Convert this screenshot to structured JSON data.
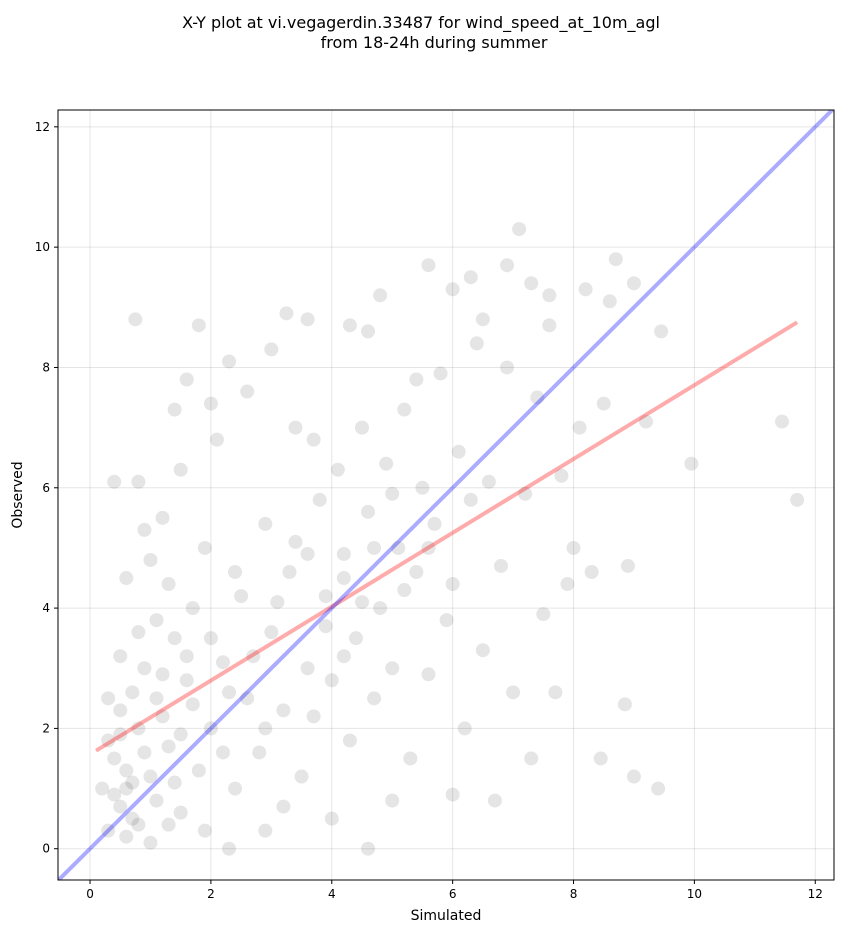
{
  "chart_data": {
    "type": "scatter",
    "title": [
      "X-Y plot at vi.vegagerdin.33487 for wind_speed_at_10m_agl",
      "from 18-24h during summer"
    ],
    "xlabel": "Simulated",
    "ylabel": "Observed",
    "xlim": [
      -0.53,
      12.31
    ],
    "ylim": [
      -0.52,
      12.28
    ],
    "xticks": [
      0,
      2,
      4,
      6,
      8,
      10,
      12
    ],
    "yticks": [
      0,
      2,
      4,
      6,
      8,
      10,
      12
    ],
    "grid": true,
    "color": "#000000",
    "x": [
      11.45,
      11.7,
      9.95,
      9.45,
      9.4,
      9.0,
      8.45,
      8.85,
      7.1,
      0.75,
      4.6,
      2.3,
      5.6,
      6.3,
      8.7,
      9.0,
      3.6,
      3.25,
      1.8,
      2.3,
      0.5,
      0.6,
      0.4,
      0.7,
      0.8,
      0.3,
      0.5,
      1.0,
      1.1,
      1.2,
      0.9,
      1.3,
      1.5,
      1.6,
      1.4,
      1.8,
      2.0,
      1.7,
      2.2,
      2.4,
      0.2,
      0.3,
      0.6,
      1.0,
      1.2,
      0.8,
      1.5,
      1.9,
      2.1,
      2.5,
      2.6,
      2.8,
      3.0,
      3.2,
      2.9,
      3.3,
      3.5,
      3.6,
      3.8,
      3.9,
      4.0,
      4.1,
      4.2,
      4.3,
      4.4,
      4.5,
      4.6,
      4.7,
      4.8,
      4.9,
      5.0,
      5.1,
      5.2,
      5.3,
      5.4,
      5.5,
      5.6,
      5.7,
      5.8,
      5.9,
      6.0,
      6.1,
      6.2,
      6.3,
      6.4,
      6.5,
      6.6,
      6.7,
      6.8,
      6.9,
      7.0,
      7.2,
      7.4,
      7.5,
      7.6,
      7.8,
      7.9,
      8.0,
      8.1,
      8.3,
      8.5,
      8.9,
      9.2,
      7.7,
      7.3,
      6.0,
      5.0,
      4.0,
      3.2,
      2.9,
      2.2,
      1.1,
      0.9,
      0.4,
      1.4,
      1.6,
      2.0,
      2.6,
      3.0,
      3.4,
      3.7,
      4.3,
      4.6,
      4.8,
      5.4,
      6.0,
      6.5,
      6.9,
      7.3,
      7.6,
      8.2,
      8.6,
      0.5,
      0.7,
      0.6,
      1.0,
      1.3,
      1.9,
      1.2,
      1.5,
      1.7,
      2.3,
      2.7,
      3.1,
      3.4,
      3.9,
      4.2,
      4.5,
      4.7,
      5.2,
      5.6,
      3.6,
      2.4,
      2.0,
      1.3,
      0.8,
      2.9,
      3.7,
      4.2,
      5.0,
      0.4,
      0.6,
      0.5,
      0.9,
      1.1,
      0.7,
      0.3,
      0.8,
      1.4,
      1.6
    ],
    "values": [
      7.1,
      5.8,
      6.4,
      8.6,
      1.0,
      1.2,
      1.5,
      2.4,
      10.3,
      8.8,
      0.0,
      0.0,
      9.7,
      9.5,
      9.8,
      9.4,
      8.8,
      8.9,
      8.7,
      8.1,
      0.7,
      1.0,
      1.5,
      0.5,
      2.0,
      2.5,
      3.2,
      1.2,
      0.8,
      2.2,
      3.0,
      1.7,
      0.6,
      2.8,
      3.5,
      1.3,
      2.0,
      4.0,
      3.1,
      1.0,
      1.0,
      0.3,
      4.5,
      4.8,
      5.5,
      6.1,
      6.3,
      5.0,
      6.8,
      4.2,
      2.5,
      1.6,
      3.6,
      2.3,
      5.4,
      4.6,
      1.2,
      3.0,
      5.8,
      4.2,
      2.8,
      6.3,
      4.9,
      1.8,
      3.5,
      7.0,
      5.6,
      2.5,
      4.0,
      6.4,
      3.0,
      5.0,
      7.3,
      1.5,
      4.6,
      6.0,
      2.9,
      5.4,
      7.9,
      3.8,
      4.4,
      6.6,
      2.0,
      5.8,
      8.4,
      3.3,
      6.1,
      0.8,
      4.7,
      8.0,
      2.6,
      5.9,
      7.5,
      3.9,
      8.7,
      6.2,
      4.4,
      5.0,
      7.0,
      4.6,
      7.4,
      4.7,
      7.1,
      2.6,
      1.5,
      0.9,
      0.8,
      0.5,
      0.7,
      0.3,
      1.6,
      3.8,
      5.3,
      6.1,
      7.3,
      7.8,
      7.4,
      7.6,
      8.3,
      7.0,
      6.8,
      8.7,
      8.6,
      9.2,
      7.8,
      9.3,
      8.8,
      9.7,
      9.4,
      9.2,
      9.3,
      9.1,
      1.9,
      2.6,
      0.2,
      0.1,
      0.4,
      0.3,
      2.9,
      1.9,
      2.4,
      2.6,
      3.2,
      4.1,
      5.1,
      3.7,
      4.5,
      4.1,
      5.0,
      4.3,
      5.0,
      4.9,
      4.6,
      3.5,
      4.4,
      3.6,
      2.0,
      2.2,
      3.2,
      5.9,
      0.9,
      1.3,
      2.3,
      1.6,
      2.5,
      1.1,
      1.8,
      0.4,
      1.1,
      3.2
    ],
    "lines": [
      {
        "color": "#ff0000",
        "x": [
          0.1,
          11.7
        ],
        "y": [
          1.63,
          8.75
        ]
      },
      {
        "color": "#0000ff",
        "x": [
          -0.53,
          12.31
        ],
        "y": [
          -0.53,
          12.31
        ]
      }
    ]
  }
}
